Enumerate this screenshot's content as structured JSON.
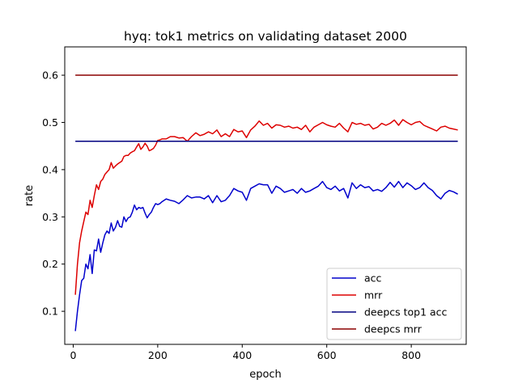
{
  "chart_data": {
    "type": "line",
    "title": "hyq: tok1 metrics on validating dataset 2000",
    "xlabel": "epoch",
    "ylabel": "rate",
    "xlim": [
      -20,
      930
    ],
    "ylim": [
      0.03,
      0.66
    ],
    "xticks": [
      "0",
      "200",
      "400",
      "600",
      "800"
    ],
    "yticks": [
      "0.1",
      "0.2",
      "0.3",
      "0.4",
      "0.5",
      "0.6"
    ],
    "grid": false,
    "legend_position": "lower-right",
    "series": [
      {
        "name": "acc",
        "color": "#0000cc",
        "x": [
          5,
          10,
          15,
          20,
          25,
          30,
          35,
          40,
          45,
          50,
          55,
          60,
          65,
          70,
          75,
          80,
          85,
          90,
          95,
          100,
          105,
          110,
          115,
          120,
          125,
          130,
          135,
          140,
          145,
          150,
          155,
          160,
          165,
          170,
          175,
          180,
          185,
          190,
          195,
          200,
          205,
          210,
          220,
          230,
          240,
          250,
          260,
          270,
          280,
          290,
          300,
          310,
          320,
          330,
          340,
          350,
          360,
          370,
          380,
          390,
          400,
          410,
          420,
          430,
          440,
          450,
          460,
          470,
          480,
          490,
          500,
          510,
          520,
          530,
          540,
          550,
          560,
          570,
          580,
          590,
          600,
          610,
          620,
          630,
          640,
          650,
          660,
          670,
          680,
          690,
          700,
          710,
          720,
          730,
          740,
          750,
          760,
          770,
          780,
          790,
          800,
          810,
          820,
          830,
          840,
          850,
          860,
          870,
          880,
          890,
          900,
          910
        ],
        "y": [
          0.058,
          0.1,
          0.135,
          0.165,
          0.17,
          0.2,
          0.19,
          0.22,
          0.18,
          0.23,
          0.228,
          0.253,
          0.225,
          0.245,
          0.262,
          0.27,
          0.265,
          0.287,
          0.27,
          0.278,
          0.292,
          0.28,
          0.278,
          0.3,
          0.29,
          0.298,
          0.3,
          0.31,
          0.325,
          0.315,
          0.32,
          0.318,
          0.32,
          0.308,
          0.298,
          0.305,
          0.31,
          0.32,
          0.328,
          0.326,
          0.328,
          0.332,
          0.338,
          0.335,
          0.333,
          0.328,
          0.336,
          0.345,
          0.34,
          0.342,
          0.342,
          0.338,
          0.345,
          0.33,
          0.345,
          0.332,
          0.335,
          0.345,
          0.36,
          0.355,
          0.352,
          0.335,
          0.36,
          0.365,
          0.37,
          0.368,
          0.368,
          0.35,
          0.365,
          0.36,
          0.352,
          0.355,
          0.358,
          0.35,
          0.36,
          0.352,
          0.355,
          0.36,
          0.365,
          0.375,
          0.362,
          0.358,
          0.365,
          0.355,
          0.36,
          0.34,
          0.372,
          0.36,
          0.368,
          0.362,
          0.364,
          0.355,
          0.358,
          0.354,
          0.362,
          0.373,
          0.363,
          0.375,
          0.362,
          0.372,
          0.366,
          0.358,
          0.362,
          0.372,
          0.362,
          0.356,
          0.345,
          0.338,
          0.35,
          0.356,
          0.353,
          0.348
        ]
      },
      {
        "name": "mrr",
        "color": "#dd0000",
        "x": [
          5,
          10,
          15,
          20,
          25,
          30,
          35,
          40,
          45,
          50,
          55,
          60,
          65,
          70,
          75,
          80,
          85,
          90,
          95,
          100,
          105,
          110,
          115,
          120,
          125,
          130,
          135,
          140,
          145,
          150,
          155,
          160,
          165,
          170,
          175,
          180,
          185,
          190,
          195,
          200,
          205,
          210,
          220,
          230,
          240,
          250,
          260,
          270,
          280,
          290,
          300,
          310,
          320,
          330,
          340,
          350,
          360,
          370,
          380,
          390,
          400,
          410,
          420,
          430,
          440,
          450,
          460,
          470,
          480,
          490,
          500,
          510,
          520,
          530,
          540,
          550,
          560,
          570,
          580,
          590,
          600,
          610,
          620,
          630,
          640,
          650,
          660,
          670,
          680,
          690,
          700,
          710,
          720,
          730,
          740,
          750,
          760,
          770,
          780,
          790,
          800,
          810,
          820,
          830,
          840,
          850,
          860,
          870,
          880,
          890,
          900,
          910
        ],
        "y": [
          0.135,
          0.2,
          0.245,
          0.27,
          0.29,
          0.31,
          0.305,
          0.335,
          0.32,
          0.345,
          0.368,
          0.358,
          0.375,
          0.38,
          0.39,
          0.395,
          0.4,
          0.415,
          0.403,
          0.408,
          0.412,
          0.415,
          0.418,
          0.428,
          0.43,
          0.43,
          0.435,
          0.438,
          0.44,
          0.448,
          0.455,
          0.443,
          0.448,
          0.456,
          0.45,
          0.44,
          0.442,
          0.445,
          0.452,
          0.462,
          0.463,
          0.465,
          0.465,
          0.47,
          0.47,
          0.467,
          0.468,
          0.46,
          0.47,
          0.478,
          0.472,
          0.475,
          0.48,
          0.476,
          0.484,
          0.47,
          0.476,
          0.47,
          0.485,
          0.48,
          0.482,
          0.468,
          0.484,
          0.492,
          0.503,
          0.494,
          0.498,
          0.488,
          0.495,
          0.494,
          0.49,
          0.492,
          0.488,
          0.49,
          0.485,
          0.494,
          0.48,
          0.49,
          0.495,
          0.5,
          0.495,
          0.492,
          0.49,
          0.498,
          0.488,
          0.48,
          0.5,
          0.496,
          0.498,
          0.494,
          0.496,
          0.486,
          0.49,
          0.498,
          0.494,
          0.498,
          0.505,
          0.494,
          0.506,
          0.5,
          0.495,
          0.5,
          0.502,
          0.494,
          0.49,
          0.486,
          0.482,
          0.49,
          0.492,
          0.488,
          0.486,
          0.484
        ]
      },
      {
        "name": "deepcs top1 acc",
        "color": "#000080",
        "x": [
          5,
          910
        ],
        "y": [
          0.46,
          0.46
        ]
      },
      {
        "name": "deepcs mrr",
        "color": "#8b0000",
        "x": [
          5,
          910
        ],
        "y": [
          0.6,
          0.6
        ]
      }
    ]
  }
}
